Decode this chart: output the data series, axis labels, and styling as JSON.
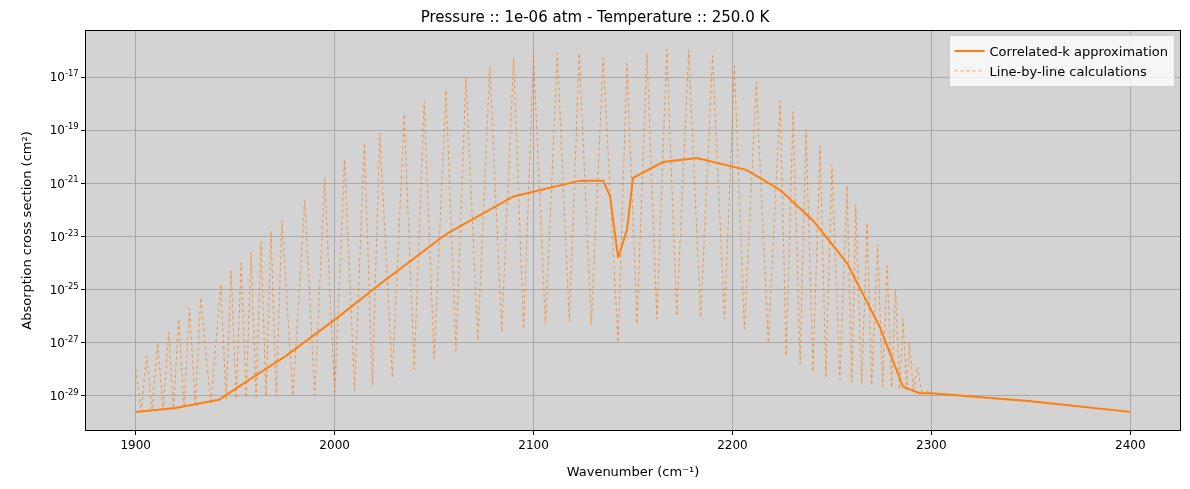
{
  "chart_data": {
    "type": "line",
    "title": "Pressure :: 1e-06 atm - Temperature :: 250.0 K",
    "xlabel": "Wavenumber (cm⁻¹)",
    "ylabel": "Absorption cross section (cm²)",
    "log": "y",
    "grid": true,
    "legend": "top right",
    "xlim": [
      1875,
      2425
    ],
    "xticks": [
      1900,
      2000,
      2100,
      2200,
      2300,
      2400
    ],
    "ylim": [
      5.2e-31,
      5.4e-16
    ],
    "yticks": [
      {
        "value": 1e-29,
        "label": "10$^{-29}$"
      },
      {
        "value": 1e-27,
        "label": "10$^{-27}$"
      },
      {
        "value": 1e-25,
        "label": "10$^{-25}$"
      },
      {
        "value": 1e-23,
        "label": "10$^{-23}$"
      },
      {
        "value": 1e-21,
        "label": "10$^{-21}$"
      },
      {
        "value": 1e-19,
        "label": "10$^{-19}$"
      },
      {
        "value": 1e-17,
        "label": "10$^{-17}$"
      }
    ],
    "series": [
      {
        "name": "Correlated-k approximation",
        "color": "#ff7f0e",
        "line_style": "solid",
        "x": [
          1900,
          1920,
          1941.8,
          1958.9,
          1975.5,
          2000.6,
          2022.7,
          2056.3,
          2089.9,
          2123.3,
          2135,
          2138.5,
          2142.5,
          2147,
          2150,
          2165,
          2182,
          2207,
          2224,
          2240.5,
          2257.6,
          2274,
          2285.8,
          2294,
          2300,
          2350,
          2400
        ],
        "values": [
          2.5e-30,
          3.5e-30,
          7.1e-30,
          5e-29,
          3.2e-28,
          7.9e-27,
          1.6e-25,
          1.26e-23,
          3.2e-22,
          1.26e-21,
          1.26e-21,
          3.2e-22,
          1.6e-24,
          1.8e-23,
          1.6e-21,
          6.3e-21,
          8.9e-21,
          3.2e-21,
          5.6e-22,
          4e-23,
          1e-24,
          4e-27,
          2.2e-29,
          1.26e-29,
          1.26e-29,
          6.3e-30,
          2.5e-30
        ]
      },
      {
        "name": "Line-by-line calculations",
        "color": "#ff7f0e",
        "line_style": "dotted",
        "x": [
          1900,
          1902.7,
          1905.5,
          1908.2,
          1911,
          1913.8,
          1916.6,
          1919,
          1921.6,
          1924.3,
          1927,
          1930,
          1932.7,
          1937.7,
          1942.8,
          1945.4,
          1948,
          1950.5,
          1953,
          1955.5,
          1958,
          1960.5,
          1963,
          1965.5,
          1968,
          1970.7,
          1973.5,
          1979,
          1985,
          1990,
          1995,
          2000,
          2005,
          2010,
          2015,
          2019,
          2022.7,
          2029,
          2035,
          2040,
          2045,
          2050,
          2056,
          2061,
          2066,
          2072,
          2078,
          2084,
          2090,
          2095,
          2100,
          2106,
          2112,
          2118,
          2123,
          2129,
          2135,
          2142.5,
          2147,
          2152,
          2157,
          2162,
          2167,
          2172,
          2178,
          2184,
          2190,
          2196,
          2201,
          2206,
          2212,
          2218,
          2224,
          2227,
          2230.5,
          2234,
          2237,
          2240.5,
          2244,
          2247,
          2250,
          2254,
          2257.6,
          2260,
          2262,
          2265,
          2267.7,
          2270,
          2273,
          2275.5,
          2277.8,
          2280,
          2282,
          2284,
          2285.8,
          2287.5,
          2289,
          2291,
          2292.9,
          2295,
          2297,
          2300,
          2350,
          2400
        ],
        "values": [
          1e-28,
          2.6e-30,
          3.2e-28,
          2.8e-30,
          1e-27,
          3e-30,
          2.5e-27,
          3.3e-30,
          7.9e-27,
          3.6e-30,
          2e-26,
          4e-30,
          5e-26,
          5e-30,
          1.6e-25,
          7.1e-30,
          5e-25,
          7.9e-30,
          1e-24,
          8.5e-30,
          2.5e-24,
          8.9e-30,
          6.3e-24,
          9.3e-30,
          1.6e-23,
          9.6e-30,
          4e-23,
          1e-29,
          2.5e-22,
          1.06e-29,
          1.6e-21,
          1.12e-29,
          7.9e-21,
          1.6e-29,
          3.2e-20,
          2.5e-29,
          7.9e-20,
          5e-29,
          4e-19,
          1e-28,
          1.26e-18,
          2.5e-28,
          3.2e-18,
          5e-28,
          1e-17,
          1.26e-27,
          2.5e-17,
          2.5e-27,
          5e-17,
          3.2e-27,
          6.3e-17,
          5e-27,
          7.9e-17,
          6.3e-27,
          7.9e-17,
          5e-27,
          5e-17,
          1e-27,
          3.2e-17,
          5e-27,
          7.9e-17,
          7.9e-27,
          1.1e-16,
          1e-26,
          1e-16,
          8.9e-27,
          6.3e-17,
          7.9e-27,
          2.5e-17,
          3.2e-27,
          6.3e-18,
          1e-27,
          1.26e-18,
          3.2e-28,
          5e-19,
          1.6e-28,
          1e-19,
          7.9e-29,
          2.5e-20,
          5e-29,
          5e-21,
          4e-29,
          7.9e-22,
          3.2e-29,
          1.6e-22,
          2.8e-29,
          3.2e-23,
          2.5e-29,
          5e-24,
          2.2e-29,
          7.9e-25,
          2e-29,
          1e-25,
          1.8e-29,
          7.9e-27,
          1.7e-29,
          1e-27,
          1.6e-29,
          1.26e-28,
          1.5e-29,
          1.6e-29,
          1.26e-29,
          6.3e-30,
          2.5e-30
        ]
      }
    ]
  }
}
